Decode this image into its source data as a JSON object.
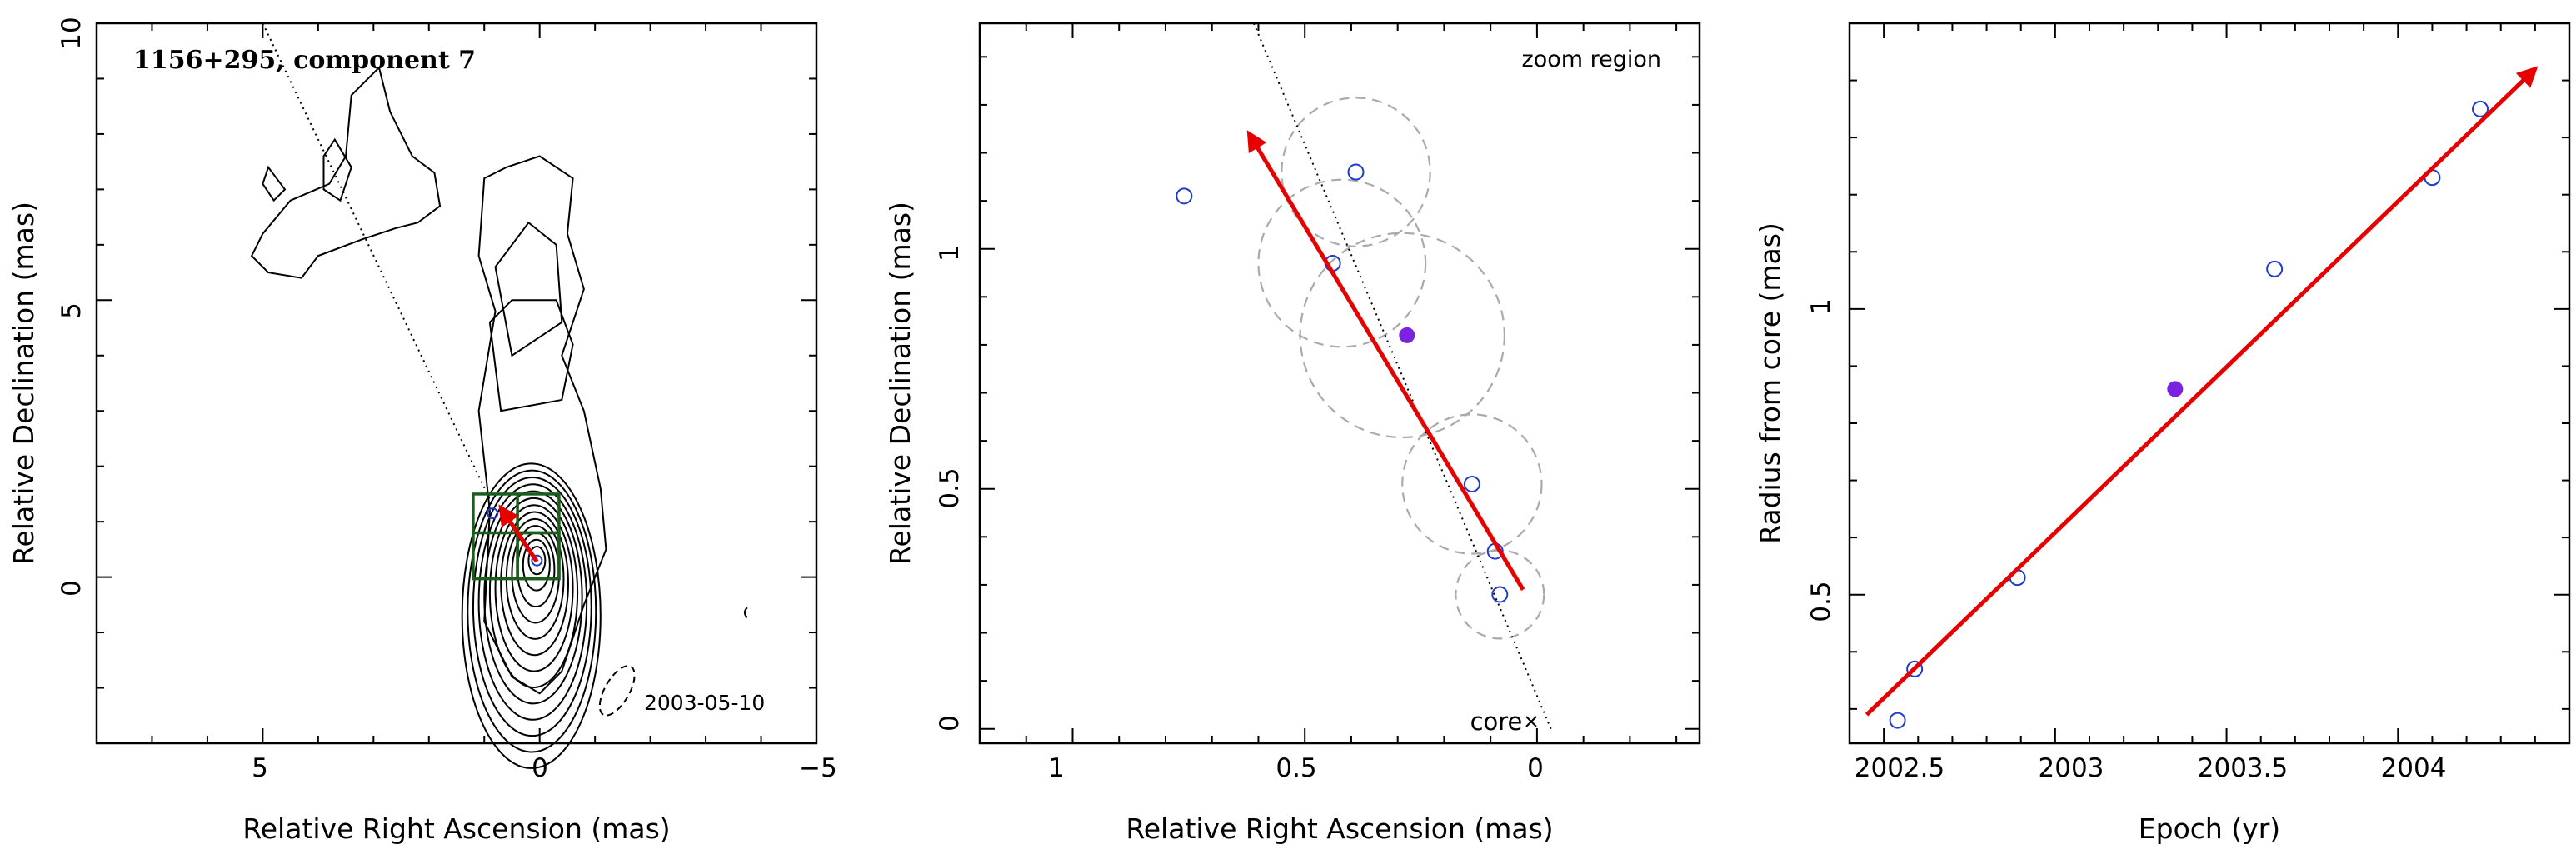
{
  "colors": {
    "arrow": "#e60000",
    "open_points": "#1f3ccc",
    "filled_point": "#7a22e0",
    "boxes": "#1a5e1a",
    "circles": "#aaaaaa"
  },
  "chart_data": [
    {
      "type": "contour",
      "title": "1156+295, component 7",
      "date_label": "2003-05-10",
      "xlabel": "Relative Right Ascension (mas)",
      "ylabel": "Relative Declination (mas)",
      "xlim": [
        8,
        -5
      ],
      "ylim": [
        -3,
        10
      ],
      "x_ticks": [
        "5",
        "0",
        "−5"
      ],
      "y_ticks": [
        "0",
        "5",
        "10"
      ],
      "points": [
        {
          "x": 0.85,
          "y": 1.15,
          "filled": false
        },
        {
          "x": 0.05,
          "y": 0.3,
          "filled": false
        }
      ],
      "arrow": {
        "from": [
          0.05,
          0.28
        ],
        "to": [
          0.7,
          1.25
        ]
      }
    },
    {
      "type": "scatter",
      "title": "zoom region",
      "core_label": "core",
      "xlabel": "Relative Right Ascension (mas)",
      "ylabel": "Relative Declination (mas)",
      "xlim": [
        1.2,
        -0.35
      ],
      "ylim": [
        -0.03,
        1.47
      ],
      "x_ticks": [
        "1",
        "0.5",
        "0"
      ],
      "y_ticks": [
        "0",
        "0.5",
        "1"
      ],
      "points": [
        {
          "x": 0.76,
          "y": 1.11,
          "filled": false
        },
        {
          "x": 0.39,
          "y": 1.16,
          "filled": false
        },
        {
          "x": 0.44,
          "y": 0.97,
          "filled": false
        },
        {
          "x": 0.28,
          "y": 0.82,
          "filled": true
        },
        {
          "x": 0.14,
          "y": 0.51,
          "filled": false
        },
        {
          "x": 0.09,
          "y": 0.37,
          "filled": false
        },
        {
          "x": 0.08,
          "y": 0.28,
          "filled": false
        }
      ],
      "circles": [
        {
          "x": 0.39,
          "y": 1.16,
          "r": 0.16
        },
        {
          "x": 0.42,
          "y": 0.97,
          "r": 0.18
        },
        {
          "x": 0.29,
          "y": 0.82,
          "r": 0.22
        },
        {
          "x": 0.14,
          "y": 0.51,
          "r": 0.15
        },
        {
          "x": 0.08,
          "y": 0.28,
          "r": 0.095
        }
      ],
      "arrow": {
        "from": [
          0.03,
          0.29
        ],
        "to": [
          0.62,
          1.24
        ]
      }
    },
    {
      "type": "scatter",
      "xlabel": "Epoch (yr)",
      "ylabel": "Radius from core (mas)",
      "xlim": [
        2002.4,
        2004.5
      ],
      "ylim": [
        0.24,
        1.5
      ],
      "x_ticks": [
        "2002.5",
        "2003",
        "2003.5",
        "2004"
      ],
      "y_ticks": [
        "0.5",
        "1"
      ],
      "points": [
        {
          "x": 2002.54,
          "y": 0.28,
          "filled": false
        },
        {
          "x": 2002.59,
          "y": 0.37,
          "filled": false
        },
        {
          "x": 2002.89,
          "y": 0.53,
          "filled": false
        },
        {
          "x": 2003.35,
          "y": 0.86,
          "filled": true
        },
        {
          "x": 2003.64,
          "y": 1.07,
          "filled": false
        },
        {
          "x": 2004.1,
          "y": 1.23,
          "filled": false
        },
        {
          "x": 2004.24,
          "y": 1.35,
          "filled": false
        }
      ],
      "arrow": {
        "from": [
          2002.45,
          0.29
        ],
        "to": [
          2004.4,
          1.42
        ]
      }
    }
  ]
}
